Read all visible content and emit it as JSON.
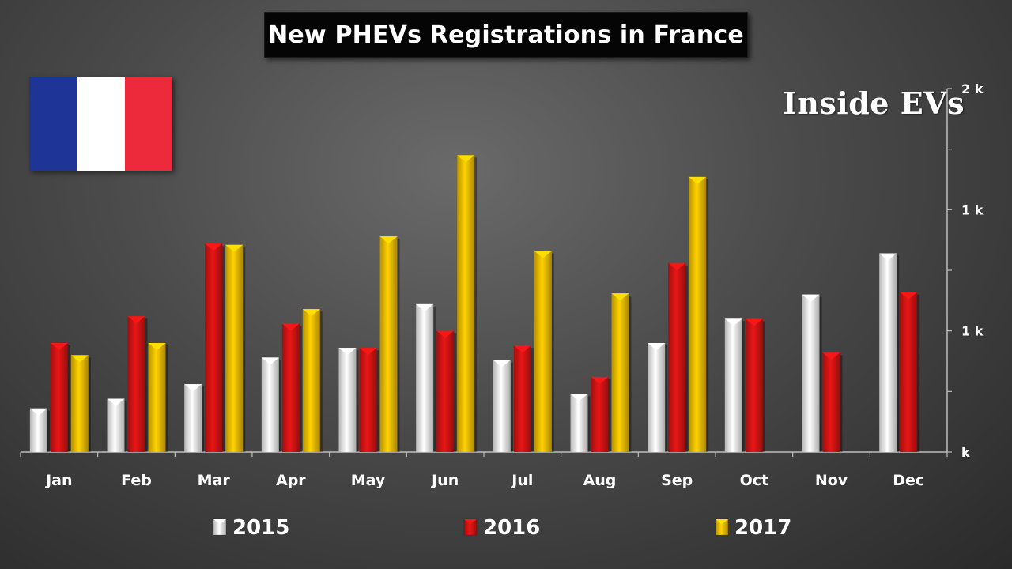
{
  "title": "New PHEVs Registrations in France",
  "watermark": "Inside EVs",
  "flag": {
    "colors": [
      "#1f3497",
      "#ffffff",
      "#ec2a3c"
    ]
  },
  "colors": {
    "2015": "#f2f2f2",
    "2016": "#d81414",
    "2017": "#f4c200",
    "axis": "#bdbdbd",
    "label": "#ffffff"
  },
  "chart_data": {
    "type": "bar",
    "categories": [
      "Jan",
      "Feb",
      "Mar",
      "Apr",
      "May",
      "Jun",
      "Jul",
      "Aug",
      "Sep",
      "Oct",
      "Nov",
      "Dec"
    ],
    "series": [
      {
        "name": "2015",
        "values": [
          180,
          220,
          280,
          390,
          430,
          610,
          380,
          240,
          450,
          550,
          650,
          820
        ]
      },
      {
        "name": "2016",
        "values": [
          450,
          560,
          860,
          530,
          430,
          500,
          440,
          310,
          780,
          550,
          410,
          660
        ]
      },
      {
        "name": "2017",
        "values": [
          400,
          450,
          855,
          590,
          890,
          1225,
          830,
          655,
          1135,
          null,
          null,
          null
        ]
      }
    ],
    "ylim": [
      0,
      1500
    ],
    "y_ticks": [
      0,
      500,
      1000,
      1500
    ],
    "y_tick_labels": [
      "k",
      "1 k",
      "1 k",
      "2 k"
    ],
    "y_axis_position": "right",
    "legend": [
      "2015",
      "2016",
      "2017"
    ],
    "legend_position": "bottom",
    "grid": false
  }
}
